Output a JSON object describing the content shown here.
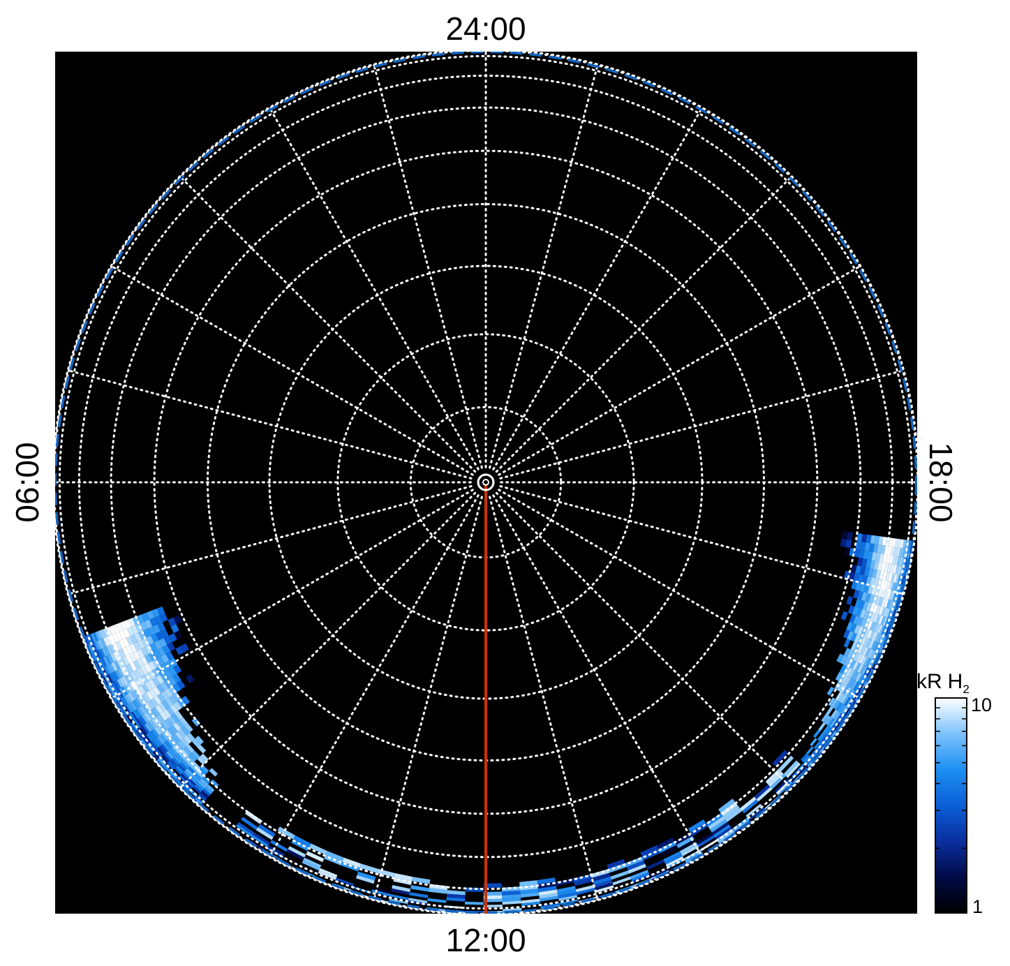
{
  "chart_data": {
    "type": "heatmap",
    "projection": "polar",
    "local_time_labels": {
      "top": "24:00",
      "bottom": "12:00",
      "left": "06:00",
      "right": "18:00"
    },
    "colorbar": {
      "unit": "kR",
      "species": "H",
      "subscript": "2",
      "min_label": "1",
      "max_label": "10",
      "min": 1,
      "max": 10,
      "scale": "log",
      "colors": [
        "#000000",
        "#000a46",
        "#0a2fa0",
        "#0b5fd6",
        "#1d8ff2",
        "#7cc2fb",
        "#ffffff"
      ]
    },
    "grid": {
      "latitude_circles_deg": [
        1,
        10,
        20,
        30,
        40,
        50,
        60,
        70,
        80,
        86,
        89
      ],
      "meridian_spacing_deg": 15,
      "style": "dotted",
      "color": "#ffffff"
    },
    "reference_oval": {
      "colatitude_deg": 84,
      "style": "dashed",
      "color": "#1565c0"
    },
    "noon_meridian": {
      "color": "#cc3300"
    },
    "background": "#000000",
    "emission_regions": [
      {
        "name": "dawn-arc",
        "lt_start_h": 7.4,
        "lt_end_h": 9.2,
        "colat_min_deg": 48,
        "colat_max_deg": 90,
        "peak_kR": 10
      },
      {
        "name": "noon-patches",
        "lt_start_h": 9.6,
        "lt_end_h": 15.2,
        "colat_min_deg": 68,
        "colat_max_deg": 90,
        "peak_kR": 8
      },
      {
        "name": "dusk-arc",
        "lt_start_h": 15.0,
        "lt_end_h": 17.4,
        "colat_min_deg": 55,
        "colat_max_deg": 90,
        "peak_kR": 10
      }
    ]
  }
}
